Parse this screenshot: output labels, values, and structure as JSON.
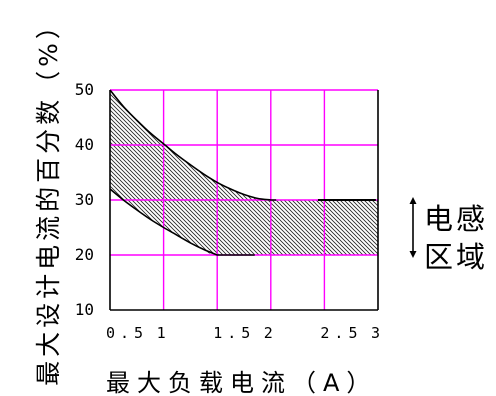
{
  "chart_data": {
    "type": "area",
    "xlabel": "最大负载电流（A）",
    "ylabel": "最大设计电流的百分数（%）",
    "xlim": [
      0.5,
      3
    ],
    "ylim": [
      10,
      50
    ],
    "xticks": [
      "0.5",
      "1",
      "1.5",
      "2",
      "2.5",
      "3"
    ],
    "yticks": [
      "10",
      "20",
      "30",
      "40",
      "50"
    ],
    "grid": true,
    "colors": {
      "grid": "#ff00ff",
      "axis": "#000000",
      "curve": "#000000",
      "hatch": "#222222"
    },
    "band": {
      "upper": {
        "x": [
          0.5,
          0.625,
          0.75,
          0.875,
          1.0,
          1.125,
          1.25,
          1.375,
          1.5,
          1.625,
          1.75,
          1.875,
          2.0,
          2.5,
          3.0
        ],
        "y": [
          50,
          47,
          44.5,
          42.2,
          40.2,
          38.2,
          36.4,
          34.7,
          33.2,
          32,
          31,
          30.3,
          30,
          30,
          30
        ]
      },
      "lower": {
        "x": [
          0.5,
          0.625,
          0.75,
          0.875,
          1.0,
          1.125,
          1.25,
          1.375,
          1.5,
          2.0,
          2.5,
          3.0
        ],
        "y": [
          32,
          30,
          28.2,
          26.5,
          25,
          23.6,
          22.2,
          21,
          20,
          20,
          20,
          20
        ]
      }
    },
    "annotation": {
      "lines": [
        "电感",
        "区域"
      ],
      "y_span": [
        20,
        30
      ]
    }
  }
}
